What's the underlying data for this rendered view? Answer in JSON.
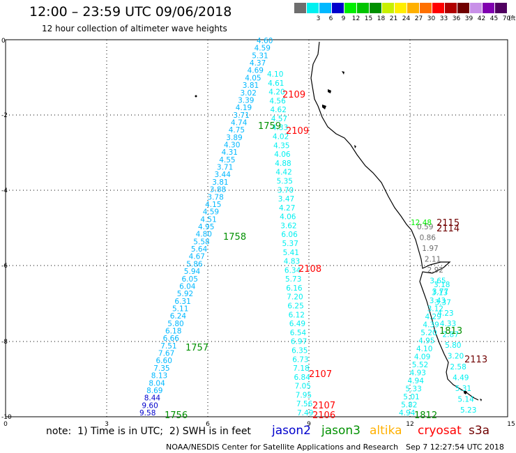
{
  "header": {
    "title": "12:00 – 23:59 UTC 09/06/2018",
    "subtitle": "12 hour collection of altimeter wave heights"
  },
  "scale": {
    "unit": "(ft)",
    "swatches": [
      {
        "color": "#6e6e6e",
        "label": ""
      },
      {
        "color": "#00f0f0",
        "label": "3"
      },
      {
        "color": "#00b8ff",
        "label": "6"
      },
      {
        "color": "#0000cc",
        "label": "9"
      },
      {
        "color": "#00ee00",
        "label": "12"
      },
      {
        "color": "#00c400",
        "label": "15"
      },
      {
        "color": "#009000",
        "label": "18"
      },
      {
        "color": "#c8f000",
        "label": "21"
      },
      {
        "color": "#ffee00",
        "label": "24"
      },
      {
        "color": "#ffb000",
        "label": "27"
      },
      {
        "color": "#ff7000",
        "label": "30"
      },
      {
        "color": "#ff0000",
        "label": "33"
      },
      {
        "color": "#b00000",
        "label": "36"
      },
      {
        "color": "#700000",
        "label": "39"
      },
      {
        "color": "#c890e8",
        "label": "42"
      },
      {
        "color": "#8000b0",
        "label": "45"
      },
      {
        "color": "#500060",
        "label": "70"
      }
    ]
  },
  "axes": {
    "x_ticks": [
      "0",
      "3",
      "6",
      "9",
      "12",
      "15"
    ],
    "y_ticks": [
      "0",
      "-2",
      "-4",
      "-6",
      "-8",
      "-10"
    ]
  },
  "tracks": [
    {
      "pass": "1756",
      "pass_color": "#009000",
      "color": "#00b8ff",
      "values": [
        "9.58",
        "9.60",
        "8.44",
        "8.69",
        "8.04",
        "8.13",
        "7.35",
        "6.60",
        "7.67",
        "7.51",
        "6.66",
        "6.18",
        "5.80",
        "6.24",
        "5.11",
        "6.31",
        "5.92",
        "6.04",
        "6.05",
        "5.94",
        "5.86",
        "4.67",
        "5.64",
        "5.58",
        "4.80",
        "4.95",
        "4.51",
        "4.59",
        "4.15",
        "3.78",
        "3.88",
        "3.81",
        "3.44",
        "3.71",
        "4.55",
        "4.31",
        "4.30",
        "3.89",
        "4.75",
        "4.74",
        "3.71",
        "4.19",
        "3.39",
        "3.02",
        "3.81",
        "4.05",
        "4.69",
        "4.37",
        "5.31",
        "4.59",
        "4.60"
      ]
    },
    {
      "pass": "2106",
      "pass_color": "#ff0000",
      "color": "#00f0f0",
      "values": [
        "7.49",
        "7.56",
        "7.95",
        "7.05",
        "6.84",
        "7.18",
        "6.73",
        "6.35",
        "6.97",
        "6.54",
        "6.49",
        "6.12",
        "6.25",
        "7.20",
        "6.16",
        "5.73",
        "6.34",
        "4.83",
        "5.41",
        "5.37",
        "6.06",
        "3.62",
        "4.06",
        "4.27",
        "3.47",
        "3.70",
        "5.35",
        "4.42",
        "4.88",
        "4.06",
        "4.35",
        "4.02",
        "4.33",
        "4.57",
        "4.62",
        "4.56",
        "4.20",
        "4.61",
        "4.10"
      ]
    },
    {
      "pass": "1812",
      "pass_color": "#009000",
      "color": "#00f0f0",
      "values": [
        "4.94",
        "5.82",
        "5.01",
        "5.33",
        "4.94",
        "4.93",
        "5.52",
        "4.09",
        "4.10",
        "4.95",
        "5.20",
        "4.39",
        "4.29",
        "3.12",
        "3.43",
        "3.13",
        "3.18"
      ]
    },
    {
      "pass": "2113",
      "pass_color": "#700000",
      "color": "#00f0f0",
      "values": [
        "5.23",
        "5.14",
        "5.31",
        "4.49",
        "2.58",
        "3.20",
        "5.80",
        "2.87",
        "4.33",
        "4.23",
        "3.37",
        "3.77",
        "3.65",
        "2.92",
        "2.11",
        "1.97",
        "0.86",
        "0.59"
      ]
    }
  ],
  "extra_labels": [
    {
      "text": "12.48",
      "color": "#00ee00"
    }
  ],
  "pass_labels": [
    {
      "text": "2109",
      "color": "#ff0000"
    },
    {
      "text": "1759",
      "color": "#009000"
    },
    {
      "text": "2109",
      "color": "#ff0000"
    },
    {
      "text": "1758",
      "color": "#009000"
    },
    {
      "text": "2108",
      "color": "#ff0000"
    },
    {
      "text": "1757",
      "color": "#009000"
    },
    {
      "text": "2107",
      "color": "#ff0000"
    },
    {
      "text": "2107",
      "color": "#ff0000"
    },
    {
      "text": "2115",
      "color": "#700000"
    },
    {
      "text": "2114",
      "color": "#700000"
    },
    {
      "text": "1813",
      "color": "#009000"
    }
  ],
  "note": "note:  1) Time is in UTC;  2) SWH is in feet",
  "satellites": [
    {
      "name": "jason2",
      "color": "#0000cc"
    },
    {
      "name": "jason3",
      "color": "#009000"
    },
    {
      "name": "altika",
      "color": "#ffb000"
    },
    {
      "name": "cryosat",
      "color": "#ff0000"
    },
    {
      "name": "s3a",
      "color": "#700000"
    }
  ],
  "footer": {
    "center": "NOAA/NESDIS Center for Satellite Applications and Research",
    "timestamp": "Sep  7 12:27:54 UTC 2018"
  }
}
